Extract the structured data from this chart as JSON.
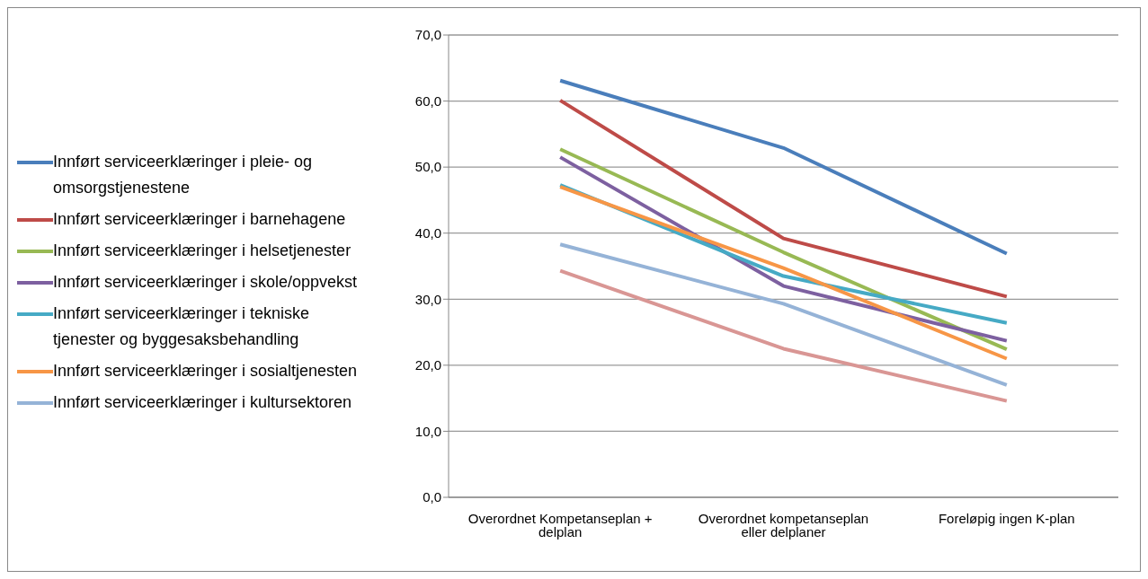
{
  "chart_data": {
    "type": "line",
    "categories": [
      "Overordnet Kompetanseplan + delplan",
      "Overordnet kompetanseplan eller delplaner",
      "Foreløpig ingen K-plan"
    ],
    "series": [
      {
        "name": "Innført serviceerklæringer i pleie- og omsorgstjenestene",
        "color": "#4a7ebb",
        "values": [
          63.1,
          52.9,
          36.9
        ]
      },
      {
        "name": "Innført serviceerklæringer i barnehagene",
        "color": "#be4b48",
        "values": [
          60.1,
          39.2,
          30.4
        ]
      },
      {
        "name": "Innført serviceerklæringer i helsetjenester",
        "color": "#98b954",
        "values": [
          52.7,
          37.1,
          22.4
        ]
      },
      {
        "name": "Innført serviceerklæringer i skole/oppvekst",
        "color": "#7d60a0",
        "values": [
          51.5,
          32.0,
          23.7
        ]
      },
      {
        "name": "Innført serviceerklæringer i tekniske tjenester og byggesaksbehandling",
        "color": "#46aac5",
        "values": [
          47.3,
          33.5,
          26.4
        ]
      },
      {
        "name": "Innført serviceerklæringer i sosialtjenesten",
        "color": "#f79646",
        "values": [
          47.0,
          34.7,
          21.0
        ]
      },
      {
        "name": "Innført serviceerklæringer i kultursektoren",
        "color": "#95b3d7",
        "values": [
          38.3,
          29.3,
          17.0
        ]
      },
      {
        "color": "#d99694",
        "values": [
          34.3,
          22.5,
          14.6
        ]
      }
    ],
    "ylim": [
      0,
      70
    ],
    "yticks": [
      {
        "value": 0,
        "label": "0,0"
      },
      {
        "value": 10,
        "label": "10,0"
      },
      {
        "value": 20,
        "label": "20,0"
      },
      {
        "value": 30,
        "label": "30,0"
      },
      {
        "value": 40,
        "label": "40,0"
      },
      {
        "value": 50,
        "label": "50,0"
      },
      {
        "value": 60,
        "label": "60,0"
      },
      {
        "value": 70,
        "label": "70,0"
      }
    ],
    "grid": "y",
    "legend": "left",
    "marker": "none",
    "line_style": "solid"
  }
}
